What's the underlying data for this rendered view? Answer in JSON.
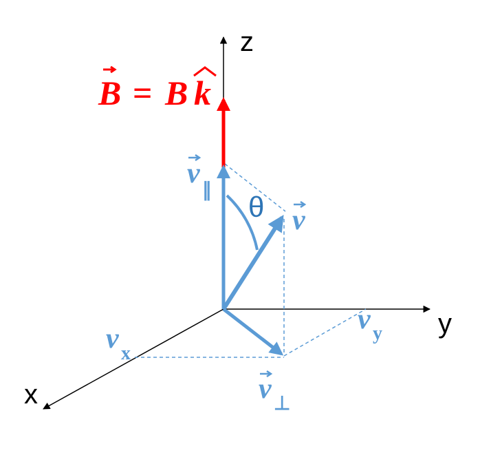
{
  "colors": {
    "axis": "#000000",
    "field": "#ff0000",
    "velocity": "#5b9bd5",
    "theta": "#2e75b6"
  },
  "axes": {
    "z": "z",
    "y": "y",
    "x": "x"
  },
  "field_label": {
    "lhs": "B",
    "equals": "=",
    "rhs_magnitude": "B",
    "rhs_unit": "k"
  },
  "vectors": {
    "v": "v",
    "v_parallel": {
      "symbol": "v",
      "subscript": "∥"
    },
    "v_perp": {
      "symbol": "v",
      "subscript": "⊥"
    }
  },
  "components": {
    "vx": {
      "symbol": "v",
      "subscript": "x"
    },
    "vy": {
      "symbol": "v",
      "subscript": "y"
    }
  },
  "angle": "θ"
}
